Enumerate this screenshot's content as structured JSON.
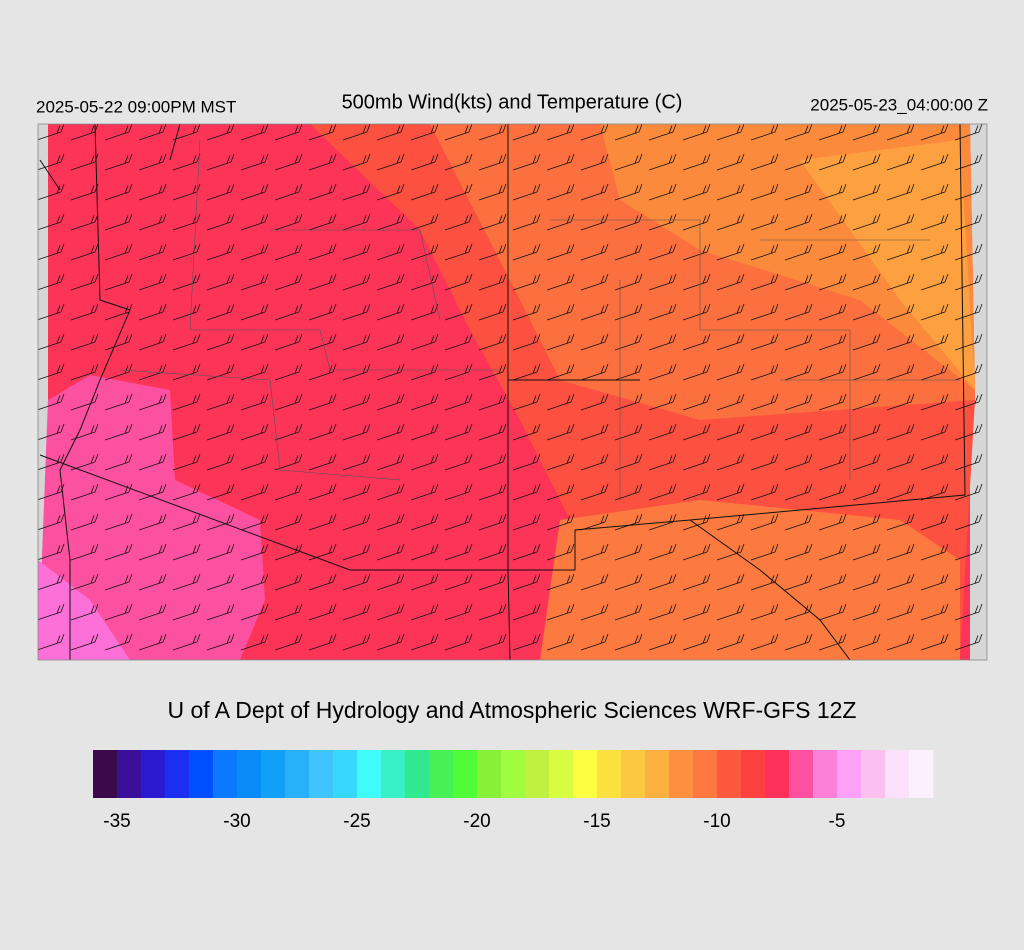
{
  "header": {
    "left": "2025-05-22 09:00PM MST",
    "title": "500mb Wind(kts) and Temperature (C)",
    "right": "2025-05-23_04:00:00 Z"
  },
  "credit": "U of A Dept of Hydrology and Atmospheric Sciences WRF-GFS 12Z",
  "colorbar": {
    "colors": [
      "#3a0a4a",
      "#3c0f9a",
      "#2a1ad0",
      "#1a2ff0",
      "#0050ff",
      "#0a78ff",
      "#0a8cf8",
      "#10a0f8",
      "#28b0f8",
      "#40c4fc",
      "#38d8fc",
      "#40fcf8",
      "#38f0c8",
      "#30e890",
      "#48f058",
      "#50fc38",
      "#88f038",
      "#a0fc40",
      "#c0f040",
      "#d8fc40",
      "#fcfc40",
      "#fce040",
      "#fcc840",
      "#fcb040",
      "#fc9040",
      "#fc7840",
      "#fc5840",
      "#fc4040",
      "#fc3058",
      "#fc50a0",
      "#fc80d8",
      "#fca0f8",
      "#fcc0f0",
      "#fce0fc",
      "#fcf0fc"
    ],
    "range": [
      -36,
      -1
    ],
    "ticks": [
      -35,
      -30,
      -25,
      -20,
      -15,
      -10,
      -5
    ]
  }
}
